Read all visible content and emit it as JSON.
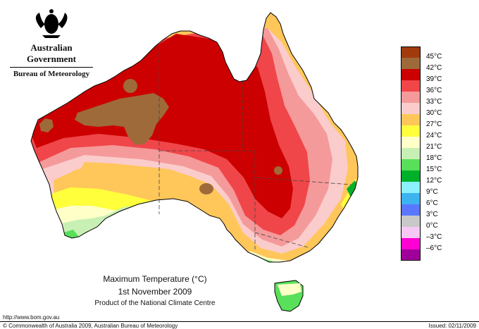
{
  "header": {
    "government": "Australian Government",
    "bureau": "Bureau of Meteorology"
  },
  "legend": [
    {
      "label": "45°C",
      "color": "#a23b0c"
    },
    {
      "label": "42°C",
      "color": "#9e6a3a"
    },
    {
      "label": "39°C",
      "color": "#cc0000"
    },
    {
      "label": "36°C",
      "color": "#f0464a"
    },
    {
      "label": "33°C",
      "color": "#f59a9a"
    },
    {
      "label": "30°C",
      "color": "#fbcccc"
    },
    {
      "label": "27°C",
      "color": "#ffc65a"
    },
    {
      "label": "24°C",
      "color": "#ffff3c"
    },
    {
      "label": "21°C",
      "color": "#ffffc8"
    },
    {
      "label": "18°C",
      "color": "#c8f0b4"
    },
    {
      "label": "15°C",
      "color": "#58e05a"
    },
    {
      "label": "12°C",
      "color": "#00b02a"
    },
    {
      "label": "9°C",
      "color": "#8cf0ff"
    },
    {
      "label": "6°C",
      "color": "#3cb4f0"
    },
    {
      "label": "3°C",
      "color": "#5a78ff"
    },
    {
      "label": "0°C",
      "color": "#c8c8c8"
    },
    {
      "label": "–3°C",
      "color": "#f5c8f5"
    },
    {
      "label": "–6°C",
      "color": "#ff00d2"
    },
    {
      "label": "",
      "color": "#a0009a"
    }
  ],
  "title": {
    "line1": "Maximum Temperature (°C)",
    "line2": "1st November 2009",
    "line3": "Product of the National Climate Centre"
  },
  "footer": {
    "url": "http://www.bom.gov.au",
    "copyright": "© Commonwealth of Australia 2009, Australian Bureau of Meteorology",
    "issued": "Issued: 02/11/2009"
  }
}
